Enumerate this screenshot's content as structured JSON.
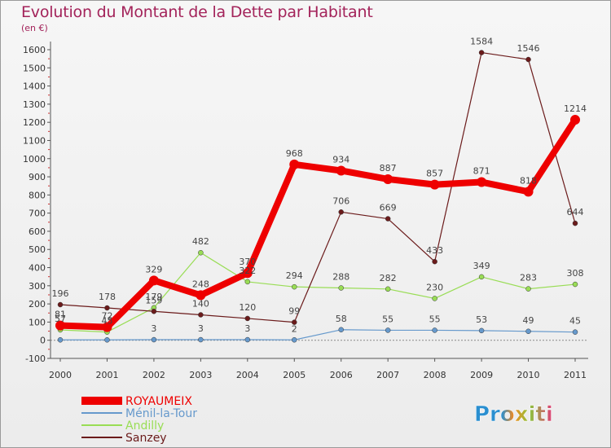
{
  "header": {
    "title": "Evolution du Montant de la Dette par Habitant",
    "unit": "(en €)"
  },
  "logo": {
    "text": "Proxiti"
  },
  "colors": {
    "title": "#a3235a",
    "series": [
      "#ee0000",
      "#6699cc",
      "#99dd55",
      "#6b1b1b"
    ]
  },
  "chart_data": {
    "type": "line",
    "title": "Evolution du Montant de la Dette par Habitant",
    "ylabel": "(en €)",
    "xlabel": "",
    "x": [
      "2000",
      "2001",
      "2002",
      "2003",
      "2004",
      "2005",
      "2006",
      "2007",
      "2008",
      "2009",
      "2010",
      "2011"
    ],
    "ylim": [
      -100,
      1600
    ],
    "yticks": [
      -100,
      0,
      100,
      200,
      300,
      400,
      500,
      600,
      700,
      800,
      900,
      1000,
      1100,
      1200,
      1300,
      1400,
      1500,
      1600
    ],
    "grid": false,
    "legend_position": "bottom-left",
    "series": [
      {
        "name": "ROYAUMEIX",
        "values": [
          81,
          72,
          329,
          248,
          370,
          968,
          934,
          887,
          857,
          871,
          818,
          1214
        ]
      },
      {
        "name": "Ménil-la-Tour",
        "values": [
          2,
          2,
          3,
          3,
          3,
          2,
          58,
          55,
          55,
          53,
          49,
          45
        ]
      },
      {
        "name": "Andilly",
        "values": [
          57,
          45,
          179,
          482,
          322,
          294,
          288,
          282,
          230,
          349,
          283,
          308
        ]
      },
      {
        "name": "Sanzey",
        "values": [
          196,
          178,
          159,
          140,
          120,
          99,
          706,
          669,
          433,
          1584,
          1546,
          644
        ]
      }
    ],
    "labels": [
      [
        "81",
        "72",
        "329",
        "248",
        "370",
        "968",
        "934",
        "887",
        "857",
        "871",
        "818",
        "1214"
      ],
      [
        "",
        "",
        "3",
        "3",
        "3",
        "2",
        "58",
        "55",
        "55",
        "53",
        "49",
        "45"
      ],
      [
        "57",
        "45",
        "179",
        "482",
        "322",
        "294",
        "288",
        "282",
        "230",
        "349",
        "283",
        "308"
      ],
      [
        "196",
        "178",
        "159",
        "140",
        "120",
        "99",
        "706",
        "669",
        "433",
        "1584",
        "1546",
        "644"
      ]
    ]
  }
}
